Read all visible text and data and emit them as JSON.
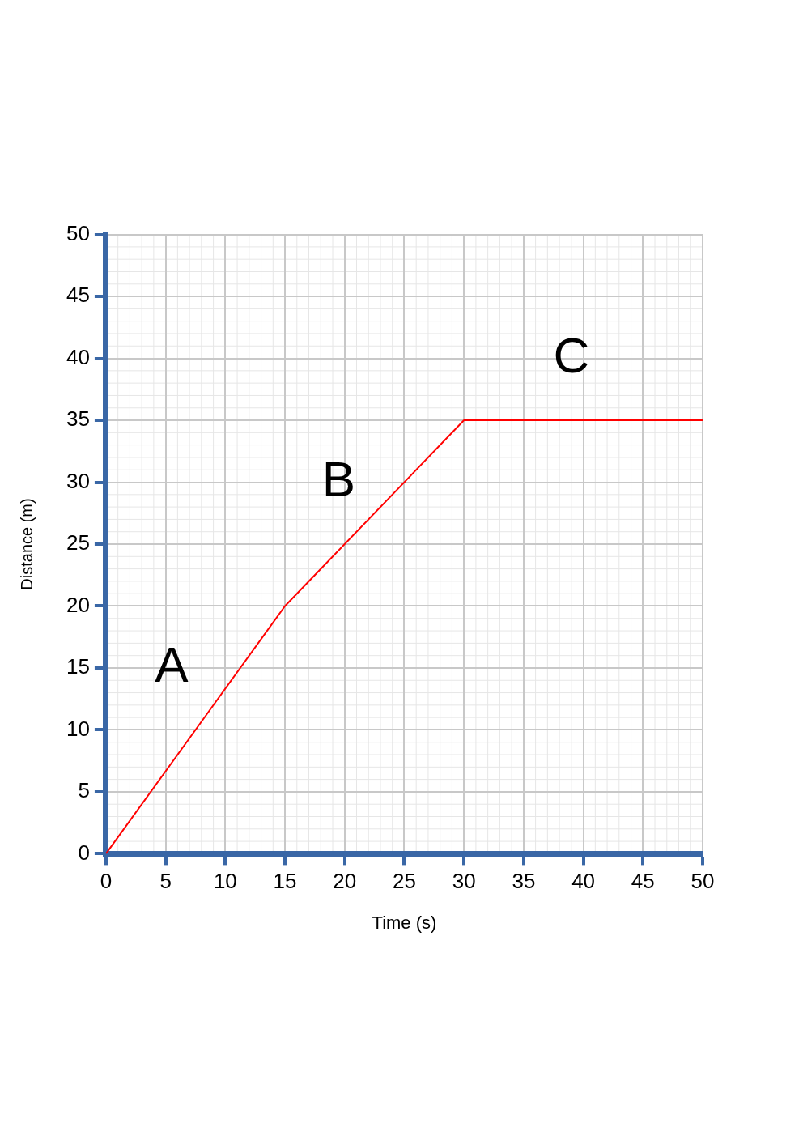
{
  "chart_data": {
    "type": "line",
    "xlabel": "Time (s)",
    "ylabel": "Distance (m)",
    "x": [
      0,
      15,
      30,
      50
    ],
    "series": [
      {
        "color": "#ff0000",
        "values": [
          0,
          20,
          35,
          35
        ]
      }
    ],
    "xlim": [
      0,
      50
    ],
    "ylim": [
      0,
      50
    ],
    "xticks": [
      0,
      5,
      10,
      15,
      20,
      25,
      30,
      35,
      40,
      45,
      50
    ],
    "yticks": [
      0,
      5,
      10,
      15,
      20,
      25,
      30,
      35,
      40,
      45,
      50
    ],
    "grid": true,
    "legend": false,
    "marker": "none",
    "line_style": "solid",
    "annotations": [
      "A",
      "B",
      "C"
    ]
  }
}
